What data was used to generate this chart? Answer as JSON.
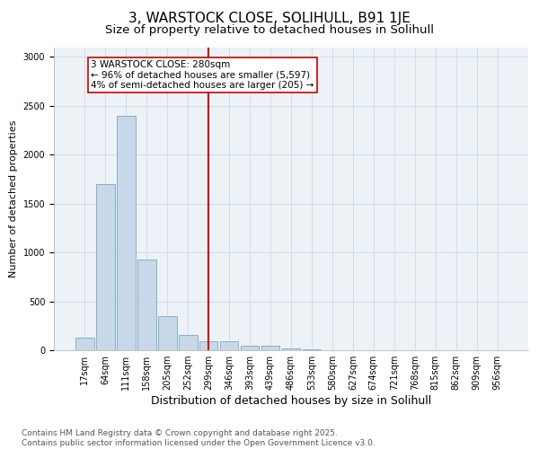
{
  "title1": "3, WARSTOCK CLOSE, SOLIHULL, B91 1JE",
  "title2": "Size of property relative to detached houses in Solihull",
  "xlabel": "Distribution of detached houses by size in Solihull",
  "ylabel": "Number of detached properties",
  "categories": [
    "17sqm",
    "64sqm",
    "111sqm",
    "158sqm",
    "205sqm",
    "252sqm",
    "299sqm",
    "346sqm",
    "393sqm",
    "439sqm",
    "486sqm",
    "533sqm",
    "580sqm",
    "627sqm",
    "674sqm",
    "721sqm",
    "768sqm",
    "815sqm",
    "862sqm",
    "909sqm",
    "956sqm"
  ],
  "values": [
    130,
    1700,
    2400,
    930,
    350,
    155,
    90,
    90,
    50,
    45,
    15,
    5,
    3,
    2,
    1,
    0,
    0,
    0,
    0,
    0,
    0
  ],
  "bar_color": "#c8d8e8",
  "bar_edge_color": "#6699bb",
  "vline_x": 6,
  "vline_color": "#cc0000",
  "annotation_line1": "3 WARSTOCK CLOSE: 280sqm",
  "annotation_line2": "← 96% of detached houses are smaller (5,597)",
  "annotation_line3": "4% of semi-detached houses are larger (205) →",
  "annotation_box_color": "#ffffff",
  "annotation_box_edge_color": "#cc0000",
  "ylim": [
    0,
    3100
  ],
  "bg_color": "#edf2f7",
  "footer1": "Contains HM Land Registry data © Crown copyright and database right 2025.",
  "footer2": "Contains public sector information licensed under the Open Government Licence v3.0.",
  "title1_fontsize": 11,
  "title2_fontsize": 9.5,
  "xlabel_fontsize": 9,
  "ylabel_fontsize": 8,
  "footer_fontsize": 6.5,
  "tick_fontsize": 7,
  "annotation_fontsize": 7.5
}
